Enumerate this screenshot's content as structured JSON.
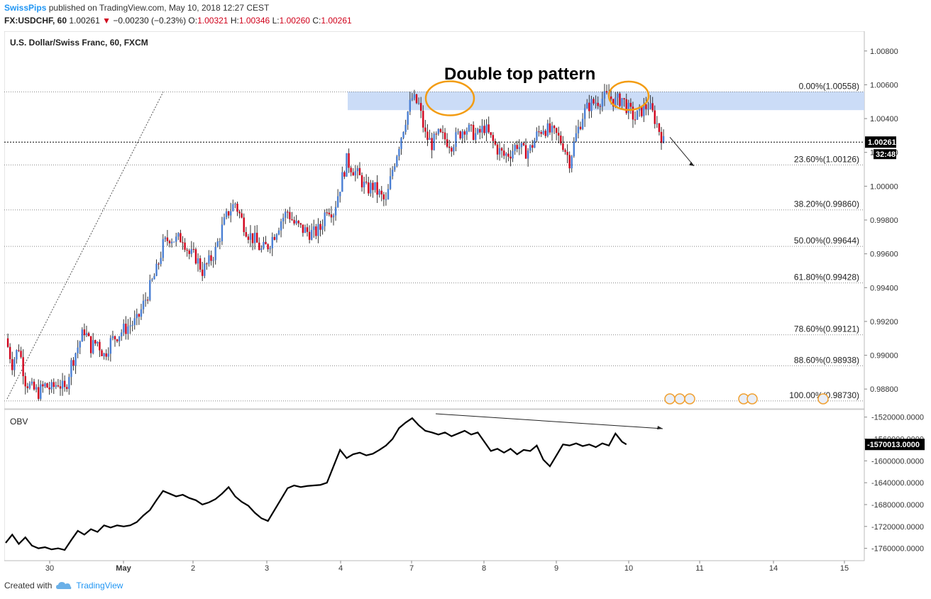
{
  "header": {
    "publisher": "SwissPips",
    "published_text": "published on TradingView.com, May 10, 2018 12:27 CEST",
    "symbol": "FX:USDCHF, 60",
    "last": "1.00261",
    "change": "−0.00230 (−0.23%)",
    "o_label": "O:",
    "o_value": "1.00321",
    "h_label": "H:",
    "h_value": "1.00346",
    "l_label": "L:",
    "l_value": "1.00260",
    "c_label": "C:",
    "c_value": "1.00261"
  },
  "footer": {
    "created_with": "Created with",
    "brand": "TradingView"
  },
  "colors": {
    "up": "#4a7fd4",
    "down": "#d0021b",
    "zone": "#c5d8f6",
    "circle": "#f39c12",
    "last_price": "#000000",
    "obv": "#000000"
  },
  "chart_data": [
    {
      "type": "candlestick",
      "title": "U.S. Dollar/Swiss Franc, 60, FXCM",
      "annotation": "Double top pattern",
      "ylim": [
        0.987,
        1.009
      ],
      "y_ticks": [
        "1.00800",
        "1.00600",
        "1.00400",
        "1.00200",
        "1.00000",
        "0.99800",
        "0.99600",
        "0.99400",
        "0.99200",
        "0.99000",
        "0.98800"
      ],
      "x_ticks": [
        "30",
        "May",
        "2",
        "3",
        "4",
        "7",
        "8",
        "9",
        "10",
        "11",
        "14",
        "15"
      ],
      "last_price": "1.00261",
      "countdown": "32:48",
      "resistance_zone": [
        1.0045,
        1.0056
      ],
      "fibonacci": [
        {
          "label": "0.00%(1.00558)",
          "value": 1.00558
        },
        {
          "label": "23.60%(1.00126)",
          "value": 1.00126
        },
        {
          "label": "38.20%(0.99860)",
          "value": 0.9986
        },
        {
          "label": "50.00%(0.99644)",
          "value": 0.99644
        },
        {
          "label": "61.80%(0.99428)",
          "value": 0.99428
        },
        {
          "label": "78.60%(0.99121)",
          "value": 0.99121
        },
        {
          "label": "88.60%(0.98938)",
          "value": 0.98938
        },
        {
          "label": "100.00%(0.98730)",
          "value": 0.9873
        }
      ],
      "price_path": [
        [
          0,
          0.991
        ],
        [
          3,
          0.9895
        ],
        [
          6,
          0.9905
        ],
        [
          9,
          0.9885
        ],
        [
          12,
          0.988
        ],
        [
          15,
          0.9878
        ],
        [
          18,
          0.9882
        ],
        [
          21,
          0.988
        ],
        [
          24,
          0.9884
        ],
        [
          27,
          0.9879
        ],
        [
          30,
          0.9895
        ],
        [
          33,
          0.9905
        ],
        [
          36,
          0.9915
        ],
        [
          39,
          0.9905
        ],
        [
          42,
          0.9908
        ],
        [
          45,
          0.99
        ],
        [
          48,
          0.9908
        ],
        [
          51,
          0.9912
        ],
        [
          54,
          0.9915
        ],
        [
          57,
          0.9918
        ],
        [
          60,
          0.992
        ],
        [
          63,
          0.993
        ],
        [
          66,
          0.994
        ],
        [
          69,
          0.995
        ],
        [
          72,
          0.9965
        ],
        [
          75,
          0.997
        ],
        [
          78,
          0.9968
        ],
        [
          81,
          0.997
        ],
        [
          84,
          0.996
        ],
        [
          87,
          0.9958
        ],
        [
          90,
          0.995
        ],
        [
          93,
          0.9955
        ],
        [
          96,
          0.9962
        ],
        [
          99,
          0.9975
        ],
        [
          102,
          0.9985
        ],
        [
          105,
          0.999
        ],
        [
          108,
          0.998
        ],
        [
          111,
          0.9972
        ],
        [
          114,
          0.9968
        ],
        [
          117,
          0.9962
        ],
        [
          120,
          0.9965
        ],
        [
          123,
          0.9972
        ],
        [
          126,
          0.998
        ],
        [
          129,
          0.9985
        ],
        [
          132,
          0.9978
        ],
        [
          135,
          0.9975
        ],
        [
          138,
          0.9973
        ],
        [
          141,
          0.9972
        ],
        [
          144,
          0.9975
        ],
        [
          147,
          0.9988
        ],
        [
          150,
          0.9985
        ],
        [
          153,
          1.0
        ],
        [
          156,
          1.0015
        ],
        [
          159,
          1.001
        ],
        [
          162,
          1.0005
        ],
        [
          165,
          0.9998
        ],
        [
          168,
          1.0
        ],
        [
          171,
          0.9995
        ],
        [
          174,
          0.999
        ],
        [
          177,
          1.001
        ],
        [
          180,
          1.0025
        ],
        [
          183,
          1.004
        ],
        [
          186,
          1.0052
        ],
        [
          189,
          1.0048
        ],
        [
          192,
          1.003
        ],
        [
          195,
          1.0025
        ],
        [
          198,
          1.003
        ],
        [
          201,
          1.0028
        ],
        [
          204,
          1.0025
        ],
        [
          207,
          1.003
        ],
        [
          210,
          1.0035
        ],
        [
          213,
          1.0032
        ],
        [
          216,
          1.003
        ],
        [
          219,
          1.0035
        ],
        [
          222,
          1.0028
        ],
        [
          225,
          1.0022
        ],
        [
          228,
          1.0018
        ],
        [
          231,
          1.002
        ],
        [
          234,
          1.0025
        ],
        [
          237,
          1.002
        ],
        [
          240,
          1.0022
        ],
        [
          243,
          1.003
        ],
        [
          246,
          1.0035
        ],
        [
          249,
          1.0032
        ],
        [
          252,
          1.003
        ],
        [
          255,
          1.0025
        ],
        [
          258,
          1.0015
        ],
        [
          261,
          1.003
        ],
        [
          264,
          1.0042
        ],
        [
          267,
          1.0048
        ],
        [
          270,
          1.005
        ],
        [
          273,
          1.0052
        ],
        [
          276,
          1.0053
        ],
        [
          279,
          1.005
        ],
        [
          282,
          1.0052
        ],
        [
          285,
          1.0045
        ],
        [
          288,
          1.004
        ],
        [
          291,
          1.0045
        ],
        [
          294,
          1.0048
        ],
        [
          297,
          1.004
        ],
        [
          300,
          1.003
        ],
        [
          301,
          1.0026
        ]
      ]
    },
    {
      "type": "line",
      "title": "OBV",
      "ylim": [
        -1780000,
        -1510000
      ],
      "y_ticks": [
        "-1520000.0000",
        "-1560000.0000",
        "-1600000.0000",
        "-1640000.0000",
        "-1680000.0000",
        "-1720000.0000",
        "-1760000.0000"
      ],
      "last_value": "-1570013.0000",
      "values": [
        [
          0,
          -1750000
        ],
        [
          3,
          -1735000
        ],
        [
          6,
          -1752000
        ],
        [
          9,
          -1740000
        ],
        [
          12,
          -1755000
        ],
        [
          15,
          -1760000
        ],
        [
          18,
          -1758000
        ],
        [
          21,
          -1762000
        ],
        [
          24,
          -1760000
        ],
        [
          27,
          -1763000
        ],
        [
          30,
          -1745000
        ],
        [
          33,
          -1728000
        ],
        [
          36,
          -1735000
        ],
        [
          39,
          -1725000
        ],
        [
          42,
          -1730000
        ],
        [
          45,
          -1718000
        ],
        [
          48,
          -1722000
        ],
        [
          51,
          -1718000
        ],
        [
          54,
          -1720000
        ],
        [
          57,
          -1718000
        ],
        [
          60,
          -1712000
        ],
        [
          63,
          -1700000
        ],
        [
          66,
          -1690000
        ],
        [
          69,
          -1672000
        ],
        [
          72,
          -1655000
        ],
        [
          75,
          -1660000
        ],
        [
          78,
          -1665000
        ],
        [
          81,
          -1662000
        ],
        [
          84,
          -1668000
        ],
        [
          87,
          -1672000
        ],
        [
          90,
          -1680000
        ],
        [
          93,
          -1676000
        ],
        [
          96,
          -1670000
        ],
        [
          99,
          -1660000
        ],
        [
          102,
          -1648000
        ],
        [
          105,
          -1665000
        ],
        [
          108,
          -1675000
        ],
        [
          111,
          -1682000
        ],
        [
          114,
          -1695000
        ],
        [
          117,
          -1705000
        ],
        [
          120,
          -1710000
        ],
        [
          123,
          -1690000
        ],
        [
          126,
          -1670000
        ],
        [
          129,
          -1650000
        ],
        [
          132,
          -1645000
        ],
        [
          135,
          -1648000
        ],
        [
          138,
          -1646000
        ],
        [
          141,
          -1645000
        ],
        [
          144,
          -1644000
        ],
        [
          147,
          -1640000
        ],
        [
          150,
          -1610000
        ],
        [
          153,
          -1580000
        ],
        [
          156,
          -1595000
        ],
        [
          159,
          -1588000
        ],
        [
          162,
          -1585000
        ],
        [
          165,
          -1590000
        ],
        [
          168,
          -1587000
        ],
        [
          171,
          -1580000
        ],
        [
          174,
          -1572000
        ],
        [
          177,
          -1560000
        ],
        [
          180,
          -1540000
        ],
        [
          183,
          -1530000
        ],
        [
          186,
          -1522000
        ],
        [
          189,
          -1535000
        ],
        [
          192,
          -1545000
        ],
        [
          195,
          -1548000
        ],
        [
          198,
          -1552000
        ],
        [
          201,
          -1548000
        ],
        [
          204,
          -1555000
        ],
        [
          207,
          -1550000
        ],
        [
          210,
          -1545000
        ],
        [
          213,
          -1552000
        ],
        [
          216,
          -1548000
        ],
        [
          219,
          -1565000
        ],
        [
          222,
          -1582000
        ],
        [
          225,
          -1578000
        ],
        [
          228,
          -1585000
        ],
        [
          231,
          -1578000
        ],
        [
          234,
          -1588000
        ],
        [
          237,
          -1580000
        ],
        [
          240,
          -1582000
        ],
        [
          243,
          -1572000
        ],
        [
          246,
          -1598000
        ],
        [
          249,
          -1610000
        ],
        [
          252,
          -1590000
        ],
        [
          255,
          -1570000
        ],
        [
          258,
          -1572000
        ],
        [
          261,
          -1568000
        ],
        [
          264,
          -1573000
        ],
        [
          267,
          -1570000
        ],
        [
          270,
          -1575000
        ],
        [
          273,
          -1568000
        ],
        [
          276,
          -1572000
        ],
        [
          279,
          -1550000
        ],
        [
          282,
          -1565000
        ],
        [
          284,
          -1570013
        ]
      ]
    }
  ]
}
